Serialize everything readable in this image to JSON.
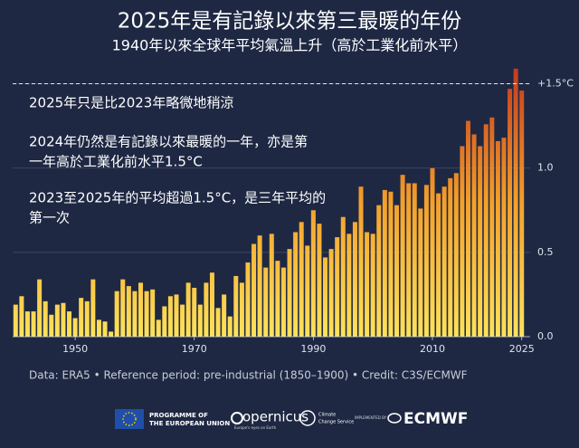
{
  "chart_data": {
    "type": "bar",
    "title": "2025年是有記錄以來第三最暖的年份",
    "subtitle": "1940年以來全球年平均氣溫上升（高於工業化前水平）",
    "annotations": [
      [
        "2025年只是比2023年略微地稍涼"
      ],
      [
        "2024年仍然是有記錄以來最暖的一年，亦是第",
        "一年高於工業化前水平1.5°C"
      ],
      [
        "2023至2025年的平均超過1.5°C，是三年平均的",
        "第一次"
      ]
    ],
    "source": "Data: ERA5 • Reference period: pre-industrial (1850–1900) • Credit: C3S/ECMWF",
    "x": [
      1940,
      1941,
      1942,
      1943,
      1944,
      1945,
      1946,
      1947,
      1948,
      1949,
      1950,
      1951,
      1952,
      1953,
      1954,
      1955,
      1956,
      1957,
      1958,
      1959,
      1960,
      1961,
      1962,
      1963,
      1964,
      1965,
      1966,
      1967,
      1968,
      1969,
      1970,
      1971,
      1972,
      1973,
      1974,
      1975,
      1976,
      1977,
      1978,
      1979,
      1980,
      1981,
      1982,
      1983,
      1984,
      1985,
      1986,
      1987,
      1988,
      1989,
      1990,
      1991,
      1992,
      1993,
      1994,
      1995,
      1996,
      1997,
      1998,
      1999,
      2000,
      2001,
      2002,
      2003,
      2004,
      2005,
      2006,
      2007,
      2008,
      2009,
      2010,
      2011,
      2012,
      2013,
      2014,
      2015,
      2016,
      2017,
      2018,
      2019,
      2020,
      2021,
      2022,
      2023,
      2024,
      2025
    ],
    "values": [
      0.19,
      0.24,
      0.15,
      0.15,
      0.34,
      0.21,
      0.13,
      0.19,
      0.2,
      0.15,
      0.11,
      0.23,
      0.21,
      0.34,
      0.1,
      0.09,
      0.03,
      0.27,
      0.34,
      0.3,
      0.27,
      0.32,
      0.27,
      0.28,
      0.1,
      0.18,
      0.24,
      0.25,
      0.19,
      0.32,
      0.29,
      0.19,
      0.32,
      0.38,
      0.17,
      0.25,
      0.12,
      0.36,
      0.32,
      0.44,
      0.55,
      0.6,
      0.41,
      0.61,
      0.45,
      0.41,
      0.52,
      0.62,
      0.68,
      0.54,
      0.75,
      0.67,
      0.47,
      0.52,
      0.59,
      0.71,
      0.61,
      0.68,
      0.89,
      0.62,
      0.61,
      0.78,
      0.87,
      0.86,
      0.78,
      0.96,
      0.91,
      0.91,
      0.76,
      0.9,
      1.0,
      0.85,
      0.89,
      0.94,
      0.97,
      1.13,
      1.28,
      1.2,
      1.13,
      1.26,
      1.3,
      1.16,
      1.18,
      1.47,
      1.59,
      1.46
    ],
    "xlim": [
      1939.5,
      2025.5
    ],
    "xticks": [
      1950,
      1970,
      1990,
      2010,
      2025
    ],
    "ylim": [
      0,
      1.75
    ],
    "yticks": [
      {
        "value": 0,
        "label": "0.0"
      },
      0.5,
      {
        "value": 1,
        "label": "1.0"
      },
      {
        "value": 1.5,
        "label": "+1.5°C"
      }
    ],
    "reference_line": 1.5,
    "gradient": [
      "#fde25a",
      "#f3a02a",
      "#c53a1e"
    ],
    "grid": true
  },
  "footer": {
    "eu": [
      "PROGRAMME OF",
      "THE EUROPEAN UNION"
    ],
    "copernicus": "opernicus",
    "copernicus_tagline": "Europe's eyes on Earth",
    "c3s": [
      "Climate",
      "Change Service"
    ],
    "implemented": "IMPLEMENTED BY",
    "ecmwf": "ECMWF"
  }
}
